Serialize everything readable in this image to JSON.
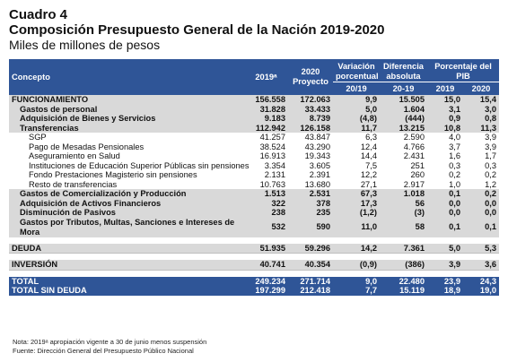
{
  "title": "Cuadro 4",
  "subtitle": "Composición Presupuesto General de la Nación 2019-2020",
  "units": "Miles de millones de pesos",
  "headers": {
    "concepto": "Concepto",
    "y2019": "2019ᵃ",
    "y2020": "2020 Proyecto",
    "var": "Variación porcentual",
    "diff": "Diferencia absoluta",
    "pib": "Porcentaje del PIB",
    "var_sub": "20/19",
    "diff_sub": "20-19",
    "pib_2019": "2019",
    "pib_2020": "2020"
  },
  "rows": [
    {
      "c": "FUNCIONAMIENTO",
      "a": "156.558",
      "b": "172.063",
      "v": "9,9",
      "d": "15.505",
      "p1": "15,0",
      "p2": "15,4"
    },
    {
      "c": "Gastos de personal",
      "a": "31.828",
      "b": "33.433",
      "v": "5,0",
      "d": "1.604",
      "p1": "3,1",
      "p2": "3,0"
    },
    {
      "c": "Adquisición de Bienes y Servicios",
      "a": "9.183",
      "b": "8.739",
      "v": "(4,8)",
      "d": "(444)",
      "p1": "0,9",
      "p2": "0,8"
    },
    {
      "c": "Transferencias",
      "a": "112.942",
      "b": "126.158",
      "v": "11,7",
      "d": "13.215",
      "p1": "10,8",
      "p2": "11,3"
    },
    {
      "c": "SGP",
      "a": "41.257",
      "b": "43.847",
      "v": "6,3",
      "d": "2.590",
      "p1": "4,0",
      "p2": "3,9"
    },
    {
      "c": "Pago de Mesadas Pensionales",
      "a": "38.524",
      "b": "43.290",
      "v": "12,4",
      "d": "4.766",
      "p1": "3,7",
      "p2": "3,9"
    },
    {
      "c": "Aseguramiento en Salud",
      "a": "16.913",
      "b": "19.343",
      "v": "14,4",
      "d": "2.431",
      "p1": "1,6",
      "p2": "1,7"
    },
    {
      "c": "Instituciones de Educación Superior Públicas sin pensiones",
      "a": "3.354",
      "b": "3.605",
      "v": "7,5",
      "d": "251",
      "p1": "0,3",
      "p2": "0,3"
    },
    {
      "c": "Fondo Prestaciones Magisterio sin pensiones",
      "a": "2.131",
      "b": "2.391",
      "v": "12,2",
      "d": "260",
      "p1": "0,2",
      "p2": "0,2"
    },
    {
      "c": "Resto de transferencias",
      "a": "10.763",
      "b": "13.680",
      "v": "27,1",
      "d": "2.917",
      "p1": "1,0",
      "p2": "1,2"
    },
    {
      "c": "Gastos de Comercialización y Producción",
      "a": "1.513",
      "b": "2.531",
      "v": "67,3",
      "d": "1.018",
      "p1": "0,1",
      "p2": "0,2"
    },
    {
      "c": "Adquisición de Activos Financieros",
      "a": "322",
      "b": "378",
      "v": "17,3",
      "d": "56",
      "p1": "0,0",
      "p2": "0,0"
    },
    {
      "c": "Disminución de Pasivos",
      "a": "238",
      "b": "235",
      "v": "(1,2)",
      "d": "(3)",
      "p1": "0,0",
      "p2": "0,0"
    },
    {
      "c": "Gastos por Tributos, Multas, Sanciones e Intereses de Mora",
      "a": "532",
      "b": "590",
      "v": "11,0",
      "d": "58",
      "p1": "0,1",
      "p2": "0,1"
    },
    {
      "c": "DEUDA",
      "a": "51.935",
      "b": "59.296",
      "v": "14,2",
      "d": "7.361",
      "p1": "5,0",
      "p2": "5,3"
    },
    {
      "c": "INVERSIÓN",
      "a": "40.741",
      "b": "40.354",
      "v": "(0,9)",
      "d": "(386)",
      "p1": "3,9",
      "p2": "3,6"
    },
    {
      "c": "TOTAL",
      "a": "249.234",
      "b": "271.714",
      "v": "9,0",
      "d": "22.480",
      "p1": "23,9",
      "p2": "24,3"
    },
    {
      "c": "TOTAL SIN DEUDA",
      "a": "197.299",
      "b": "212.418",
      "v": "7,7",
      "d": "15.119",
      "p1": "18,9",
      "p2": "19,0"
    }
  ],
  "notes": {
    "n1": "Nota: 2019ᵃ apropiación vigente a 30 de junio menos suspensión",
    "n2": "Fuente: Dirección General del Presupuesto Público Nacional"
  }
}
